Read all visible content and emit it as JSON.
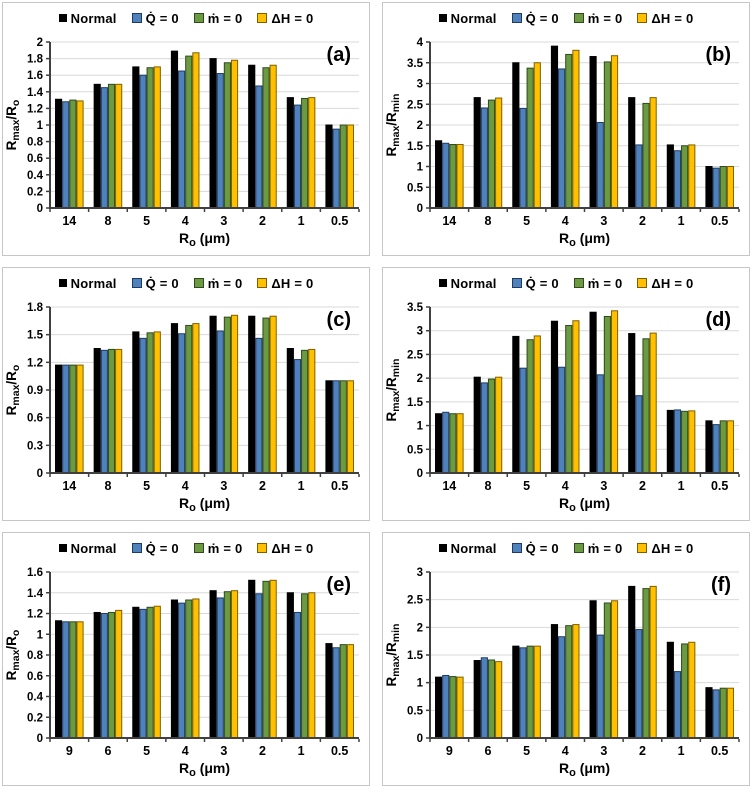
{
  "figure": {
    "background": "#ffffff",
    "panel_border_color": "#c6c6c6",
    "grid_color": "#d9d9d9",
    "axis_color": "#404040",
    "tick_text_color": "#000000"
  },
  "series_styles": [
    {
      "name": "Normal",
      "fill": "#000000",
      "stroke": "#000000"
    },
    {
      "name": "Q̇ = 0",
      "fill": "#4F81BD",
      "stroke": "#1F3B63"
    },
    {
      "name": "ṁ = 0",
      "fill": "#6B9A41",
      "stroke": "#2F4B1E"
    },
    {
      "name": "ΔH = 0",
      "fill": "#FFC000",
      "stroke": "#7F6000"
    }
  ],
  "chart_data": [
    {
      "type": "bar",
      "panel_label": "(a)",
      "legend_position": "top",
      "grid": true,
      "categories": [
        "14",
        "8",
        "5",
        "4",
        "3",
        "2",
        "1",
        "0.5"
      ],
      "xlabel": "Ro (μm)",
      "xlabel_parts": [
        {
          "t": "R"
        },
        {
          "t": "o",
          "sub": true
        },
        {
          "t": " (μm)"
        }
      ],
      "ylabel": "Rmax/Ro",
      "ylabel_parts": [
        {
          "t": "R"
        },
        {
          "t": "max",
          "sub": true
        },
        {
          "t": "/R"
        },
        {
          "t": "o",
          "sub": true
        }
      ],
      "ylim": [
        0,
        2
      ],
      "ytick": 0.2,
      "series": [
        {
          "name": "Normal",
          "values": [
            1.31,
            1.49,
            1.7,
            1.89,
            1.8,
            1.72,
            1.33,
            1.0
          ]
        },
        {
          "name": "Q̇ = 0",
          "values": [
            1.28,
            1.45,
            1.6,
            1.65,
            1.62,
            1.47,
            1.24,
            0.95
          ]
        },
        {
          "name": "ṁ = 0",
          "values": [
            1.3,
            1.49,
            1.69,
            1.83,
            1.75,
            1.69,
            1.32,
            1.0
          ]
        },
        {
          "name": "ΔH = 0",
          "values": [
            1.29,
            1.49,
            1.7,
            1.87,
            1.78,
            1.72,
            1.33,
            1.0
          ]
        }
      ]
    },
    {
      "type": "bar",
      "panel_label": "(b)",
      "legend_position": "top",
      "grid": true,
      "categories": [
        "14",
        "8",
        "5",
        "4",
        "3",
        "2",
        "1",
        "0.5"
      ],
      "xlabel": "Ro (μm)",
      "xlabel_parts": [
        {
          "t": "R"
        },
        {
          "t": "o",
          "sub": true
        },
        {
          "t": " (μm)"
        }
      ],
      "ylabel": "Rmax/Rmin",
      "ylabel_parts": [
        {
          "t": "R"
        },
        {
          "t": "max",
          "sub": true
        },
        {
          "t": "/R"
        },
        {
          "t": "min",
          "sub": true
        }
      ],
      "ylim": [
        0,
        4
      ],
      "ytick": 0.5,
      "series": [
        {
          "name": "Normal",
          "values": [
            1.62,
            2.66,
            3.5,
            3.9,
            3.65,
            2.66,
            1.52,
            1.0
          ]
        },
        {
          "name": "Q̇ = 0",
          "values": [
            1.56,
            2.41,
            2.4,
            3.35,
            2.06,
            1.52,
            1.38,
            0.96
          ]
        },
        {
          "name": "ṁ = 0",
          "values": [
            1.53,
            2.6,
            3.37,
            3.7,
            3.52,
            2.52,
            1.5,
            1.0
          ]
        },
        {
          "name": "ΔH = 0",
          "values": [
            1.53,
            2.65,
            3.5,
            3.8,
            3.67,
            2.66,
            1.52,
            1.0
          ]
        }
      ]
    },
    {
      "type": "bar",
      "panel_label": "(c)",
      "legend_position": "top",
      "grid": true,
      "categories": [
        "14",
        "8",
        "5",
        "4",
        "3",
        "2",
        "1",
        "0.5"
      ],
      "xlabel": "Ro (μm)",
      "xlabel_parts": [
        {
          "t": "R"
        },
        {
          "t": "o",
          "sub": true
        },
        {
          "t": " (μm)"
        }
      ],
      "ylabel": "Rmax/Ro",
      "ylabel_parts": [
        {
          "t": "R"
        },
        {
          "t": "max",
          "sub": true
        },
        {
          "t": "/R"
        },
        {
          "t": "o",
          "sub": true
        }
      ],
      "ylim": [
        0,
        1.8
      ],
      "ytick": 0.3,
      "series": [
        {
          "name": "Normal",
          "values": [
            1.17,
            1.35,
            1.53,
            1.62,
            1.7,
            1.7,
            1.35,
            1.0
          ]
        },
        {
          "name": "Q̇ = 0",
          "values": [
            1.17,
            1.33,
            1.46,
            1.51,
            1.54,
            1.46,
            1.23,
            1.0
          ]
        },
        {
          "name": "ṁ = 0",
          "values": [
            1.17,
            1.34,
            1.52,
            1.6,
            1.69,
            1.68,
            1.33,
            1.0
          ]
        },
        {
          "name": "ΔH = 0",
          "values": [
            1.17,
            1.34,
            1.53,
            1.62,
            1.71,
            1.7,
            1.34,
            1.0
          ]
        }
      ]
    },
    {
      "type": "bar",
      "panel_label": "(d)",
      "legend_position": "top",
      "grid": true,
      "categories": [
        "14",
        "8",
        "5",
        "4",
        "3",
        "2",
        "1",
        "0.5"
      ],
      "xlabel": "Ro (μm)",
      "xlabel_parts": [
        {
          "t": "R"
        },
        {
          "t": "o",
          "sub": true
        },
        {
          "t": " (μm)"
        }
      ],
      "ylabel": "Rmax/Rmin",
      "ylabel_parts": [
        {
          "t": "R"
        },
        {
          "t": "max",
          "sub": true
        },
        {
          "t": "/R"
        },
        {
          "t": "min",
          "sub": true
        }
      ],
      "ylim": [
        0,
        3.5
      ],
      "ytick": 0.5,
      "series": [
        {
          "name": "Normal",
          "values": [
            1.25,
            2.02,
            2.88,
            3.2,
            3.39,
            2.94,
            1.32,
            1.1
          ]
        },
        {
          "name": "Q̇ = 0",
          "values": [
            1.28,
            1.9,
            2.21,
            2.23,
            2.07,
            1.63,
            1.33,
            1.02
          ]
        },
        {
          "name": "ṁ = 0",
          "values": [
            1.25,
            1.98,
            2.81,
            3.11,
            3.3,
            2.83,
            1.3,
            1.1
          ]
        },
        {
          "name": "ΔH = 0",
          "values": [
            1.25,
            2.02,
            2.89,
            3.21,
            3.42,
            2.95,
            1.31,
            1.1
          ]
        }
      ]
    },
    {
      "type": "bar",
      "panel_label": "(e)",
      "legend_position": "top",
      "grid": true,
      "categories": [
        "9",
        "6",
        "5",
        "4",
        "3",
        "2",
        "1",
        "0.5"
      ],
      "xlabel": "Ro (μm)",
      "xlabel_parts": [
        {
          "t": "R"
        },
        {
          "t": "o",
          "sub": true
        },
        {
          "t": " (μm)"
        }
      ],
      "ylabel": "Rmax/Ro",
      "ylabel_parts": [
        {
          "t": "R"
        },
        {
          "t": "max",
          "sub": true
        },
        {
          "t": "/R"
        },
        {
          "t": "o",
          "sub": true
        }
      ],
      "ylim": [
        0,
        1.6
      ],
      "ytick": 0.2,
      "series": [
        {
          "name": "Normal",
          "values": [
            1.13,
            1.21,
            1.26,
            1.33,
            1.42,
            1.52,
            1.4,
            0.91
          ]
        },
        {
          "name": "Q̇ = 0",
          "values": [
            1.12,
            1.2,
            1.24,
            1.3,
            1.35,
            1.39,
            1.21,
            0.87
          ]
        },
        {
          "name": "ṁ = 0",
          "values": [
            1.12,
            1.21,
            1.26,
            1.33,
            1.41,
            1.51,
            1.39,
            0.9
          ]
        },
        {
          "name": "ΔH = 0",
          "values": [
            1.12,
            1.23,
            1.27,
            1.34,
            1.42,
            1.52,
            1.4,
            0.9
          ]
        }
      ]
    },
    {
      "type": "bar",
      "panel_label": "(f)",
      "legend_position": "top",
      "grid": true,
      "categories": [
        "9",
        "6",
        "5",
        "4",
        "3",
        "2",
        "1",
        "0.5"
      ],
      "xlabel": "Ro (μm)",
      "xlabel_parts": [
        {
          "t": "R"
        },
        {
          "t": "o",
          "sub": true
        },
        {
          "t": " (μm)"
        }
      ],
      "ylabel": "Rmax/Rmin",
      "ylabel_parts": [
        {
          "t": "R"
        },
        {
          "t": "max",
          "sub": true
        },
        {
          "t": "/R"
        },
        {
          "t": "min",
          "sub": true
        }
      ],
      "ylim": [
        0,
        3
      ],
      "ytick": 0.5,
      "series": [
        {
          "name": "Normal",
          "values": [
            1.1,
            1.4,
            1.66,
            2.05,
            2.48,
            2.74,
            1.73,
            0.91
          ]
        },
        {
          "name": "Q̇ = 0",
          "values": [
            1.13,
            1.45,
            1.63,
            1.83,
            1.86,
            1.96,
            1.2,
            0.87
          ]
        },
        {
          "name": "ṁ = 0",
          "values": [
            1.11,
            1.41,
            1.66,
            2.03,
            2.44,
            2.7,
            1.7,
            0.9
          ]
        },
        {
          "name": "ΔH = 0",
          "values": [
            1.1,
            1.38,
            1.66,
            2.05,
            2.48,
            2.74,
            1.73,
            0.9
          ]
        }
      ]
    }
  ]
}
